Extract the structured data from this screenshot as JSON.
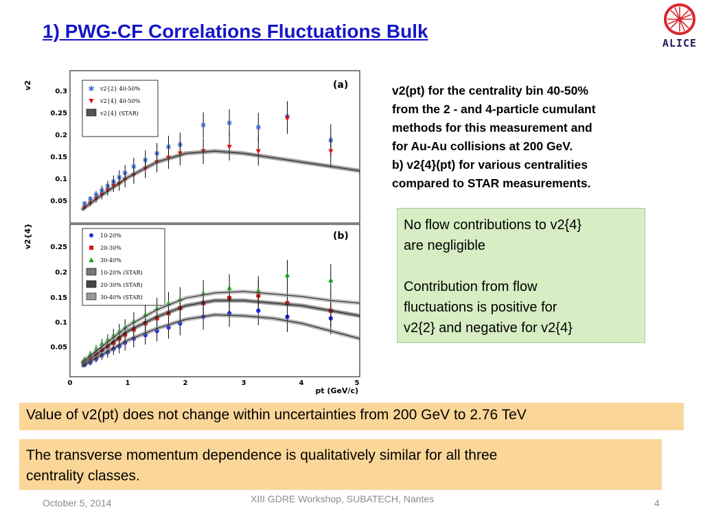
{
  "slide": {
    "title": "1) PWG-CF Correlations Fluctuations Bulk",
    "logo_text": "ALICE",
    "description_lines": [
      "v2(pt) for the centrality bin 40-50%",
      "from the 2 - and 4-particle cumulant",
      "methods for this measurement and",
      "for Au-Au collisions at 200 GeV.",
      "b) v2{4}(pt) for various centralities",
      "compared to STAR measurements."
    ],
    "green_box": {
      "p1_lines": [
        "No flow contributions to v2{4}",
        "are negligible"
      ],
      "p2_lines": [
        "Contribution from flow",
        "fluctuations is positive for",
        "v2{2} and negative for v2{4}"
      ]
    },
    "conclusion1": "Value of v2(pt) does not change within uncertainties from 200 GeV to 2.76 TeV",
    "conclusion2_lines": [
      "The transverse momentum dependence is qualitatively similar for all three",
      "centrality classes."
    ],
    "footer": {
      "date": "October 5, 2014",
      "center": "XIII GDRE Workshop, SUBATECH, Nantes",
      "page": "4"
    }
  },
  "colors": {
    "title": "#1515c8",
    "green_box": "#d7edc3",
    "orange_box": "#fad698",
    "footer": "#8a8a8a",
    "logo_red": "#d8282e",
    "logo_navy": "#1d1a5c"
  },
  "figure": {
    "panel_a": {
      "tag": "(a)",
      "ylabel": "v2",
      "yticks": [
        "0.05",
        "0.1",
        "0.15",
        "0.2",
        "0.25",
        "0.3"
      ],
      "legend": [
        "v2{2} 40-50%",
        "v2{4} 40-50%",
        "v2{4} (STAR)"
      ]
    },
    "panel_b": {
      "tag": "(b)",
      "ylabel": "v2{4}",
      "yticks": [
        "0.05",
        "0.1",
        "0.15",
        "0.2",
        "0.25"
      ],
      "xticks": [
        "0",
        "1",
        "2",
        "3",
        "4",
        "5"
      ],
      "xlabel": "pt (GeV/c)",
      "legend": [
        "10-20%",
        "20-30%",
        "30-40%",
        "10-20% (STAR)",
        "20-30% (STAR)",
        "30-40% (STAR)"
      ]
    }
  },
  "chart_data": [
    {
      "type": "scatter",
      "panel": "(a)",
      "ylabel": "v2",
      "xlim": [
        0,
        5
      ],
      "ylim": [
        0,
        0.35
      ],
      "series": [
        {
          "name": "v2{2} 40-50%",
          "color": "#3a6ee0",
          "x": [
            0.25,
            0.35,
            0.45,
            0.55,
            0.65,
            0.75,
            0.85,
            0.95,
            1.1,
            1.3,
            1.5,
            1.7,
            1.9,
            2.3,
            2.75,
            3.25,
            3.75,
            4.5
          ],
          "y": [
            0.045,
            0.055,
            0.065,
            0.075,
            0.085,
            0.095,
            0.105,
            0.115,
            0.13,
            0.145,
            0.16,
            0.175,
            0.18,
            0.225,
            0.23,
            0.22,
            0.245,
            0.19
          ]
        },
        {
          "name": "v2{4} 40-50%",
          "color": "#e01010",
          "x": [
            0.25,
            0.35,
            0.45,
            0.55,
            0.65,
            0.75,
            0.85,
            0.95,
            1.1,
            1.3,
            1.5,
            1.7,
            1.9,
            2.3,
            2.75,
            3.25,
            3.75,
            4.5
          ],
          "y": [
            0.035,
            0.045,
            0.055,
            0.065,
            0.075,
            0.085,
            0.09,
            0.1,
            0.11,
            0.125,
            0.14,
            0.15,
            0.16,
            0.165,
            0.175,
            0.165,
            0.24,
            0.165
          ]
        },
        {
          "name": "v2{4} (STAR)",
          "color": "#555555",
          "x": [
            0.2,
            0.5,
            1.0,
            1.5,
            2.0,
            2.5,
            3.0,
            3.5,
            4.0,
            4.5,
            5.0
          ],
          "y": [
            0.03,
            0.06,
            0.105,
            0.14,
            0.16,
            0.165,
            0.16,
            0.15,
            0.14,
            0.13,
            0.12
          ]
        }
      ]
    },
    {
      "type": "scatter",
      "panel": "(b)",
      "ylabel": "v2{4}",
      "xlabel": "pt (GeV/c)",
      "xlim": [
        0,
        5
      ],
      "ylim": [
        0,
        0.3
      ],
      "series": [
        {
          "name": "10-20%",
          "color": "#1a2ee0",
          "x": [
            0.25,
            0.35,
            0.45,
            0.55,
            0.65,
            0.75,
            0.85,
            0.95,
            1.1,
            1.3,
            1.5,
            1.7,
            1.9,
            2.3,
            2.75,
            3.25,
            3.75,
            4.5
          ],
          "y": [
            0.023,
            0.028,
            0.035,
            0.042,
            0.048,
            0.055,
            0.06,
            0.067,
            0.075,
            0.082,
            0.09,
            0.097,
            0.105,
            0.118,
            0.125,
            0.13,
            0.118,
            0.115
          ]
        },
        {
          "name": "20-30%",
          "color": "#e01010",
          "x": [
            0.25,
            0.35,
            0.45,
            0.55,
            0.65,
            0.75,
            0.85,
            0.95,
            1.1,
            1.3,
            1.5,
            1.7,
            1.9,
            2.3,
            2.75,
            3.25,
            3.75,
            4.5
          ],
          "y": [
            0.03,
            0.037,
            0.045,
            0.053,
            0.06,
            0.067,
            0.075,
            0.083,
            0.093,
            0.105,
            0.115,
            0.125,
            0.135,
            0.145,
            0.155,
            0.16,
            0.145,
            0.13
          ]
        },
        {
          "name": "30-40%",
          "color": "#10a010",
          "x": [
            0.25,
            0.35,
            0.45,
            0.55,
            0.65,
            0.75,
            0.85,
            0.95,
            1.1,
            1.3,
            1.5,
            1.7,
            1.9,
            2.3,
            2.75,
            3.25,
            3.75,
            4.5
          ],
          "y": [
            0.035,
            0.045,
            0.055,
            0.065,
            0.073,
            0.082,
            0.09,
            0.098,
            0.11,
            0.123,
            0.135,
            0.145,
            0.153,
            0.165,
            0.175,
            0.17,
            0.2,
            0.19
          ]
        },
        {
          "name": "10-20% (STAR)",
          "color": "#777777",
          "x": [
            0.2,
            0.5,
            1.0,
            1.5,
            2.0,
            2.5,
            3.0,
            3.5,
            4.0,
            4.5,
            5.0
          ],
          "y": [
            0.02,
            0.04,
            0.072,
            0.095,
            0.113,
            0.122,
            0.12,
            0.115,
            0.105,
            0.09,
            0.075
          ]
        },
        {
          "name": "20-30% (STAR)",
          "color": "#444444",
          "x": [
            0.2,
            0.5,
            1.0,
            1.5,
            2.0,
            2.5,
            3.0,
            3.5,
            4.0,
            4.5,
            5.0
          ],
          "y": [
            0.025,
            0.048,
            0.09,
            0.118,
            0.14,
            0.15,
            0.15,
            0.145,
            0.14,
            0.13,
            0.12
          ]
        },
        {
          "name": "30-40% (STAR)",
          "color": "#999999",
          "x": [
            0.2,
            0.5,
            1.0,
            1.5,
            2.0,
            2.5,
            3.0,
            3.5,
            4.0,
            4.5,
            5.0
          ],
          "y": [
            0.028,
            0.055,
            0.1,
            0.132,
            0.155,
            0.165,
            0.168,
            0.163,
            0.158,
            0.15,
            0.145
          ]
        }
      ]
    }
  ]
}
